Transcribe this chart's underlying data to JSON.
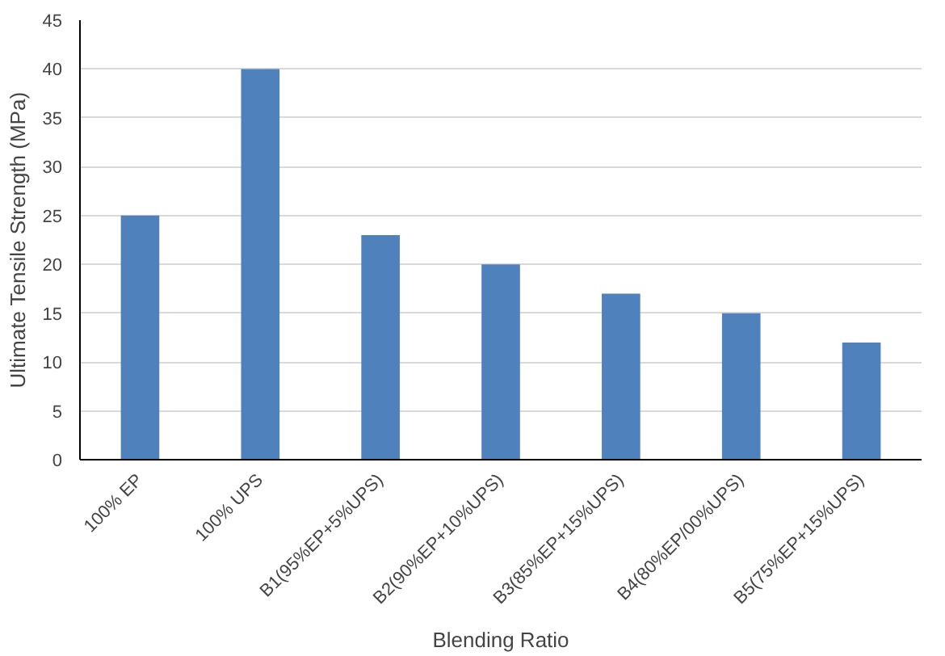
{
  "chart_data": {
    "type": "bar",
    "xlabel": "Blending Ratio",
    "ylabel": "Ultimate Tensile Strength (MPa)",
    "categories": [
      "100% EP",
      "100% UPS",
      "B1(95%EP+5%UPS)",
      "B2(90%EP+10%UPS)",
      "B3(85%EP+15%UPS)",
      "B4(80%EP/00%UPS)",
      "B5(75%EP+15%UPS)"
    ],
    "values": [
      25,
      40,
      23,
      20,
      17,
      15,
      12
    ],
    "color": "#4f81bd",
    "ylim": [
      0,
      45
    ],
    "yticks": [
      0,
      5,
      10,
      15,
      20,
      25,
      30,
      35,
      40,
      45
    ],
    "grid": "y"
  }
}
